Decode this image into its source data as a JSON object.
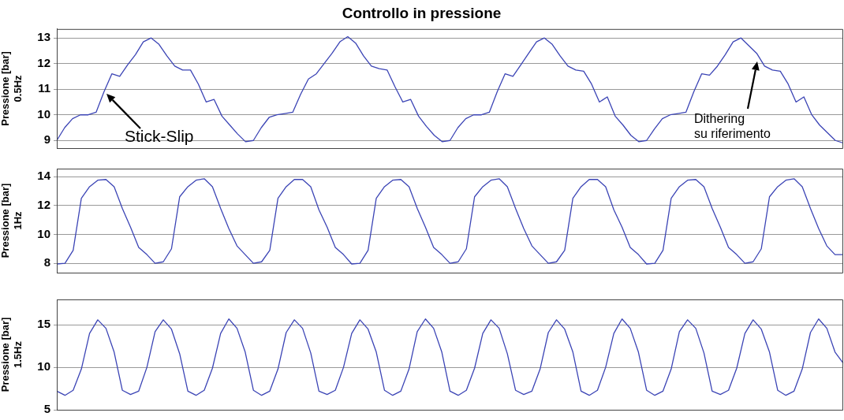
{
  "chart_data": [
    {
      "type": "line",
      "title": "Controllo in pressione",
      "ylabel": "Pressione [bar]\n0.5Hz",
      "categories": [
        null,
        null,
        null,
        null,
        null,
        null,
        null,
        null,
        null,
        null,
        null,
        null,
        null,
        null,
        null,
        null,
        null,
        null,
        null,
        null,
        null,
        null,
        null,
        null,
        null,
        null,
        null,
        null,
        null,
        null,
        null,
        null,
        null,
        null,
        null,
        null,
        null,
        null,
        null,
        null,
        null,
        null,
        null,
        null,
        null,
        null,
        null,
        null,
        null,
        null,
        null,
        null,
        null,
        null,
        null,
        null,
        null,
        null,
        null,
        null,
        null,
        null,
        null,
        null,
        null,
        null,
        null,
        null,
        null,
        null,
        null,
        null,
        null,
        null,
        null,
        null,
        null,
        null,
        null,
        null,
        null,
        null,
        null,
        null,
        null,
        null,
        null,
        null,
        null,
        null,
        null,
        null,
        null,
        null,
        null,
        null,
        null,
        null,
        null,
        null,
        null
      ],
      "series": [
        {
          "color": "#3b44b5",
          "values": [
            9.0,
            9.5,
            9.85,
            10.0,
            10.0,
            10.1,
            10.9,
            11.6,
            11.5,
            11.95,
            12.35,
            12.85,
            13.0,
            12.75,
            12.3,
            11.9,
            11.75,
            11.75,
            11.2,
            10.5,
            10.6,
            9.95,
            9.6,
            9.25,
            8.95,
            9.0,
            9.5,
            9.9,
            10.0,
            10.05,
            10.1,
            10.8,
            11.4,
            11.6,
            12.0,
            12.4,
            12.85,
            13.05,
            12.8,
            12.3,
            11.9,
            11.8,
            11.75,
            11.1,
            10.5,
            10.6,
            9.95,
            9.55,
            9.2,
            8.95,
            9.0,
            9.5,
            9.85,
            10.0,
            10.0,
            10.1,
            10.9,
            11.6,
            11.5,
            11.95,
            12.4,
            12.85,
            13.0,
            12.75,
            12.3,
            11.9,
            11.75,
            11.7,
            11.2,
            10.5,
            10.7,
            9.95,
            9.6,
            9.2,
            8.95,
            9.0,
            9.45,
            9.85,
            10.0,
            10.05,
            10.1,
            10.9,
            11.6,
            11.55,
            11.9,
            12.35,
            12.85,
            13.0,
            12.7,
            12.4,
            11.9,
            11.75,
            11.7,
            11.2,
            10.5,
            10.7,
            10.0,
            9.6,
            9.3,
            9.0,
            8.9
          ]
        }
      ],
      "ylim": [
        8.7,
        13.35
      ],
      "yticks": [
        9,
        10,
        11,
        12,
        13
      ],
      "grid": "y",
      "tick_labels": "y",
      "legend": false,
      "marker": "none",
      "line_style": "solid",
      "annotations": [
        "Stick-Slip",
        "Dithering\nsu riferimento"
      ]
    },
    {
      "type": "line",
      "ylabel": "Pressione [bar]\n1Hz",
      "categories": [
        null,
        null,
        null,
        null,
        null,
        null,
        null,
        null,
        null,
        null,
        null,
        null,
        null,
        null,
        null,
        null,
        null,
        null,
        null,
        null,
        null,
        null,
        null,
        null,
        null,
        null,
        null,
        null,
        null,
        null,
        null,
        null,
        null,
        null,
        null,
        null,
        null,
        null,
        null,
        null,
        null,
        null,
        null,
        null,
        null,
        null,
        null,
        null,
        null,
        null,
        null,
        null,
        null,
        null,
        null,
        null,
        null,
        null,
        null,
        null,
        null,
        null,
        null,
        null,
        null,
        null,
        null,
        null,
        null,
        null,
        null,
        null,
        null,
        null,
        null,
        null,
        null,
        null,
        null,
        null,
        null,
        null,
        null,
        null,
        null,
        null,
        null,
        null,
        null,
        null,
        null,
        null,
        null,
        null,
        null,
        null,
        null
      ],
      "series": [
        {
          "color": "#3b44b5",
          "values": [
            7.95,
            8.0,
            8.9,
            12.5,
            13.3,
            13.75,
            13.8,
            13.3,
            11.8,
            10.5,
            9.1,
            8.6,
            8.0,
            8.1,
            9.0,
            12.6,
            13.3,
            13.75,
            13.85,
            13.3,
            11.8,
            10.4,
            9.2,
            8.6,
            8.0,
            8.1,
            8.9,
            12.5,
            13.3,
            13.8,
            13.8,
            13.3,
            11.7,
            10.5,
            9.1,
            8.6,
            7.95,
            8.0,
            8.9,
            12.5,
            13.3,
            13.75,
            13.8,
            13.3,
            11.8,
            10.5,
            9.1,
            8.6,
            8.0,
            8.1,
            9.0,
            12.6,
            13.3,
            13.75,
            13.85,
            13.3,
            11.8,
            10.4,
            9.2,
            8.6,
            8.0,
            8.1,
            8.9,
            12.5,
            13.3,
            13.8,
            13.8,
            13.3,
            11.7,
            10.5,
            9.1,
            8.6,
            7.95,
            8.0,
            8.9,
            12.5,
            13.3,
            13.75,
            13.8,
            13.3,
            11.8,
            10.5,
            9.1,
            8.6,
            8.0,
            8.1,
            9.0,
            12.6,
            13.3,
            13.75,
            13.85,
            13.3,
            11.8,
            10.4,
            9.2,
            8.6,
            8.6
          ]
        }
      ],
      "ylim": [
        7.35,
        14.55
      ],
      "yticks": [
        8,
        10,
        12,
        14
      ],
      "grid": "y",
      "tick_labels": "y",
      "legend": false,
      "marker": "none",
      "line_style": "solid"
    },
    {
      "type": "line",
      "ylabel": "Pressione [bar]\n1.5Hz",
      "categories": [
        null,
        null,
        null,
        null,
        null,
        null,
        null,
        null,
        null,
        null,
        null,
        null,
        null,
        null,
        null,
        null,
        null,
        null,
        null,
        null,
        null,
        null,
        null,
        null,
        null,
        null,
        null,
        null,
        null,
        null,
        null,
        null,
        null,
        null,
        null,
        null,
        null,
        null,
        null,
        null,
        null,
        null,
        null,
        null,
        null,
        null,
        null,
        null,
        null,
        null,
        null,
        null,
        null,
        null,
        null,
        null,
        null,
        null,
        null,
        null,
        null,
        null,
        null,
        null,
        null,
        null,
        null,
        null,
        null,
        null,
        null,
        null,
        null,
        null,
        null,
        null,
        null,
        null,
        null,
        null,
        null,
        null,
        null,
        null,
        null,
        null,
        null,
        null,
        null,
        null,
        null,
        null,
        null,
        null,
        null,
        null,
        null
      ],
      "series": [
        {
          "color": "#3b44b5",
          "values": [
            7.2,
            6.7,
            7.3,
            9.8,
            14.0,
            15.6,
            14.6,
            11.8,
            7.3,
            6.8,
            7.2,
            10.0,
            14.2,
            15.6,
            14.5,
            11.6,
            7.2,
            6.7,
            7.3,
            9.9,
            14.0,
            15.7,
            14.6,
            11.8,
            7.3,
            6.7,
            7.2,
            9.8,
            14.1,
            15.6,
            14.6,
            11.7,
            7.2,
            6.8,
            7.3,
            10.0,
            14.0,
            15.6,
            14.5,
            11.8,
            7.3,
            6.7,
            7.2,
            9.8,
            14.2,
            15.7,
            14.6,
            11.8,
            7.2,
            6.7,
            7.3,
            9.9,
            14.0,
            15.6,
            14.6,
            11.6,
            7.3,
            6.8,
            7.2,
            9.8,
            14.1,
            15.6,
            14.5,
            11.8,
            7.2,
            6.7,
            7.3,
            10.0,
            14.0,
            15.7,
            14.6,
            11.8,
            7.3,
            6.7,
            7.2,
            9.8,
            14.2,
            15.6,
            14.6,
            11.7,
            7.2,
            6.8,
            7.3,
            9.9,
            14.0,
            15.6,
            14.5,
            11.8,
            7.3,
            6.7,
            7.2,
            9.8,
            14.1,
            15.7,
            14.6,
            11.8,
            10.5
          ]
        }
      ],
      "ylim": [
        5,
        18
      ],
      "yticks": [
        5,
        10,
        15
      ],
      "grid": "y",
      "tick_labels": "y",
      "legend": false,
      "marker": "none",
      "line_style": "solid"
    }
  ]
}
